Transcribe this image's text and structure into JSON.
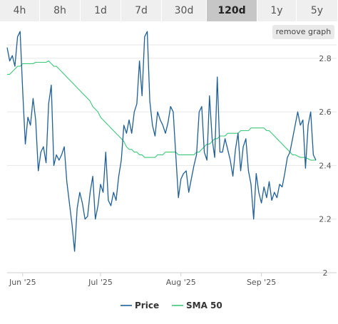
{
  "tabs": [
    {
      "label": "4h",
      "active": false
    },
    {
      "label": "8h",
      "active": false
    },
    {
      "label": "1d",
      "active": false
    },
    {
      "label": "7d",
      "active": false
    },
    {
      "label": "30d",
      "active": false
    },
    {
      "label": "120d",
      "active": true
    },
    {
      "label": "1y",
      "active": false
    },
    {
      "label": "5y",
      "active": false
    }
  ],
  "remove_graph_label": "remove graph",
  "colors": {
    "price": "#1f5f96",
    "sma": "#3cc77a",
    "grid": "#e6e6e6"
  },
  "chart_data": {
    "type": "line",
    "title": "",
    "xlabel": "",
    "ylabel": "",
    "ylim": [
      2.0,
      2.85
    ],
    "y_ticks": [
      2,
      2.2,
      2.4,
      2.6,
      2.8
    ],
    "y_tick_labels": [
      "2",
      "2.2",
      "2.4",
      "2.6",
      "2.8"
    ],
    "x_ticks": [
      {
        "label": "Jun '25",
        "day": 6
      },
      {
        "label": "Jul '25",
        "day": 36
      },
      {
        "label": "Aug '25",
        "day": 67
      },
      {
        "label": "Sep '25",
        "day": 98
      }
    ],
    "grid": true,
    "legend": "bottom-center",
    "series": [
      {
        "name": "Price",
        "color": "#1f5f96",
        "x": [
          0,
          1,
          2,
          3,
          4,
          5,
          6,
          7,
          8,
          9,
          10,
          11,
          12,
          13,
          14,
          15,
          16,
          17,
          18,
          19,
          20,
          21,
          22,
          23,
          24,
          25,
          26,
          27,
          28,
          29,
          30,
          31,
          32,
          33,
          34,
          35,
          36,
          37,
          38,
          39,
          40,
          41,
          42,
          43,
          44,
          45,
          46,
          47,
          48,
          49,
          50,
          51,
          52,
          53,
          54,
          55,
          56,
          57,
          58,
          59,
          60,
          61,
          62,
          63,
          64,
          65,
          66,
          67,
          68,
          69,
          70,
          71,
          72,
          73,
          74,
          75,
          76,
          77,
          78,
          79,
          80,
          81,
          82,
          83,
          84,
          85,
          86,
          87,
          88,
          89,
          90,
          91,
          92,
          93,
          94,
          95,
          96,
          97,
          98,
          99,
          100,
          101,
          102,
          103,
          104,
          105,
          106,
          107,
          108,
          109,
          110,
          111,
          112,
          113,
          114,
          115,
          116,
          117,
          118,
          119
        ],
        "values": [
          2.84,
          2.79,
          2.81,
          2.77,
          2.88,
          2.9,
          2.68,
          2.48,
          2.58,
          2.55,
          2.65,
          2.57,
          2.38,
          2.45,
          2.47,
          2.41,
          2.63,
          2.7,
          2.4,
          2.44,
          2.42,
          2.44,
          2.47,
          2.34,
          2.26,
          2.18,
          2.08,
          2.24,
          2.3,
          2.26,
          2.2,
          2.21,
          2.3,
          2.36,
          2.2,
          2.25,
          2.33,
          2.3,
          2.45,
          2.27,
          2.25,
          2.3,
          2.27,
          2.36,
          2.42,
          2.55,
          2.52,
          2.57,
          2.52,
          2.6,
          2.63,
          2.79,
          2.66,
          2.88,
          2.9,
          2.64,
          2.55,
          2.51,
          2.6,
          2.57,
          2.55,
          2.52,
          2.56,
          2.62,
          2.6,
          2.44,
          2.28,
          2.35,
          2.37,
          2.38,
          2.3,
          2.35,
          2.4,
          2.44,
          2.6,
          2.62,
          2.45,
          2.42,
          2.66,
          2.5,
          2.43,
          2.73,
          2.45,
          2.45,
          2.5,
          2.46,
          2.42,
          2.36,
          2.46,
          2.52,
          2.38,
          2.47,
          2.5,
          2.38,
          2.33,
          2.2,
          2.37,
          2.3,
          2.26,
          2.32,
          2.28,
          2.34,
          2.27,
          2.3,
          2.28,
          2.33,
          2.32,
          2.37,
          2.43,
          2.45,
          2.5,
          2.55,
          2.6,
          2.55,
          2.57,
          2.39,
          2.55,
          2.6,
          2.44,
          2.42
        ]
      },
      {
        "name": "SMA 50",
        "color": "#3cc77a",
        "x": [
          0,
          1,
          2,
          3,
          4,
          5,
          6,
          7,
          8,
          9,
          10,
          11,
          12,
          13,
          14,
          15,
          16,
          17,
          18,
          19,
          20,
          21,
          22,
          23,
          24,
          25,
          26,
          27,
          28,
          29,
          30,
          31,
          32,
          33,
          34,
          35,
          36,
          37,
          38,
          39,
          40,
          41,
          42,
          43,
          44,
          45,
          46,
          47,
          48,
          49,
          50,
          51,
          52,
          53,
          54,
          55,
          56,
          57,
          58,
          59,
          60,
          61,
          62,
          63,
          64,
          65,
          66,
          67,
          68,
          69,
          70,
          71,
          72,
          73,
          74,
          75,
          76,
          77,
          78,
          79,
          80,
          81,
          82,
          83,
          84,
          85,
          86,
          87,
          88,
          89,
          90,
          91,
          92,
          93,
          94,
          95,
          96,
          97,
          98,
          99,
          100,
          101,
          102,
          103,
          104,
          105,
          106,
          107,
          108,
          109,
          110,
          111,
          112,
          113,
          114,
          115,
          116,
          117,
          118,
          119
        ],
        "values": [
          2.74,
          2.74,
          2.75,
          2.76,
          2.77,
          2.77,
          2.78,
          2.78,
          2.78,
          2.78,
          2.78,
          2.785,
          2.785,
          2.785,
          2.785,
          2.785,
          2.79,
          2.78,
          2.77,
          2.77,
          2.76,
          2.75,
          2.74,
          2.73,
          2.72,
          2.71,
          2.7,
          2.69,
          2.68,
          2.67,
          2.66,
          2.65,
          2.64,
          2.62,
          2.61,
          2.6,
          2.58,
          2.57,
          2.56,
          2.55,
          2.54,
          2.53,
          2.52,
          2.51,
          2.5,
          2.49,
          2.47,
          2.46,
          2.46,
          2.45,
          2.45,
          2.44,
          2.44,
          2.43,
          2.43,
          2.43,
          2.43,
          2.43,
          2.44,
          2.44,
          2.44,
          2.45,
          2.45,
          2.45,
          2.45,
          2.45,
          2.44,
          2.44,
          2.44,
          2.44,
          2.44,
          2.44,
          2.44,
          2.45,
          2.45,
          2.46,
          2.47,
          2.48,
          2.48,
          2.49,
          2.5,
          2.5,
          2.51,
          2.51,
          2.51,
          2.52,
          2.52,
          2.52,
          2.52,
          2.52,
          2.53,
          2.53,
          2.53,
          2.53,
          2.54,
          2.54,
          2.54,
          2.54,
          2.54,
          2.54,
          2.53,
          2.53,
          2.52,
          2.51,
          2.5,
          2.49,
          2.48,
          2.47,
          2.46,
          2.45,
          2.44,
          2.44,
          2.435,
          2.43,
          2.43,
          2.43,
          2.425,
          2.42,
          2.42,
          2.42
        ]
      }
    ]
  }
}
